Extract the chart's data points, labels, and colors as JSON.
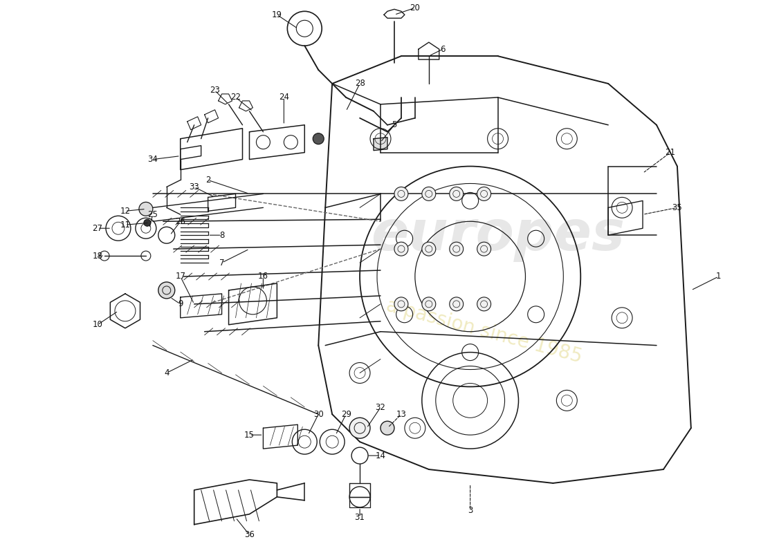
{
  "background_color": "#ffffff",
  "line_color": "#1a1a1a",
  "line_color_light": "#3a3a3a",
  "dash_color": "#555555",
  "watermark_text1": "europes",
  "watermark_text2": "a passion since 1985",
  "wm1_color": "#d0d0d0",
  "wm2_color": "#e8e0a0",
  "wm1_alpha": 0.5,
  "wm2_alpha": 0.6,
  "label_fontsize": 8.5,
  "label_color": "#111111"
}
